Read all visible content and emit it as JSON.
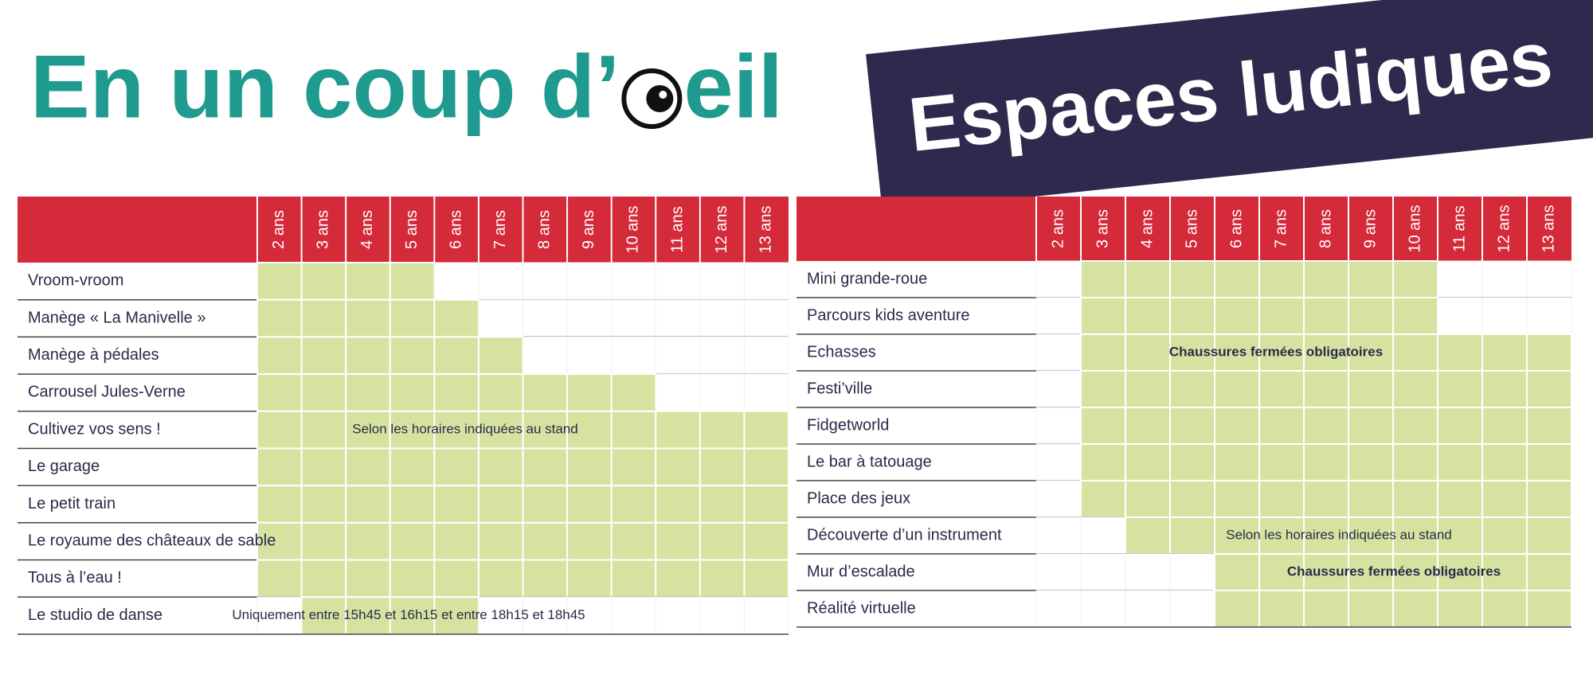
{
  "header": {
    "title_start": "En un coup d’",
    "title_end": "eil",
    "banner": "Espaces ludiques"
  },
  "tables": [
    {
      "columns": [
        "2 ans",
        "3 ans",
        "4 ans",
        "5 ans",
        "6 ans",
        "7 ans",
        "8 ans",
        "9 ans",
        "10 ans",
        "11 ans",
        "12 ans",
        "13 ans"
      ],
      "rows": [
        {
          "label": "Vroom-vroom",
          "cells": [
            true,
            true,
            true,
            true,
            false,
            false,
            false,
            false,
            false,
            false,
            false,
            false
          ]
        },
        {
          "label": "Manège « La Manivelle »",
          "cells": [
            true,
            true,
            true,
            true,
            true,
            false,
            false,
            false,
            false,
            false,
            false,
            false
          ]
        },
        {
          "label": "Manège à pédales",
          "cells": [
            true,
            true,
            true,
            true,
            true,
            true,
            false,
            false,
            false,
            false,
            false,
            false
          ]
        },
        {
          "label": "Carrousel Jules-Verne",
          "cells": [
            true,
            true,
            true,
            true,
            true,
            true,
            true,
            true,
            true,
            false,
            false,
            false
          ]
        },
        {
          "label": "Cultivez vos sens !",
          "cells": [
            true,
            true,
            true,
            true,
            true,
            true,
            true,
            true,
            true,
            true,
            true,
            true
          ],
          "note": "Selon les horaires indiquées au stand"
        },
        {
          "label": "Le garage",
          "cells": [
            true,
            true,
            true,
            true,
            true,
            true,
            true,
            true,
            true,
            true,
            true,
            true
          ]
        },
        {
          "label": "Le petit train",
          "cells": [
            true,
            true,
            true,
            true,
            true,
            true,
            true,
            true,
            true,
            true,
            true,
            true
          ]
        },
        {
          "label": "Le royaume des châteaux de sable",
          "cells": [
            true,
            true,
            true,
            true,
            true,
            true,
            true,
            true,
            true,
            true,
            true,
            true
          ]
        },
        {
          "label": "Tous à l’eau !",
          "cells": [
            true,
            true,
            true,
            true,
            true,
            true,
            true,
            true,
            true,
            true,
            true,
            true
          ]
        },
        {
          "label": "Le studio de danse",
          "cells": [
            false,
            true,
            true,
            true,
            true,
            false,
            false,
            false,
            false,
            false,
            false,
            false
          ],
          "note": "Uniquement entre 15h45 et 16h15 et entre 18h15 et 18h45"
        }
      ]
    },
    {
      "columns": [
        "2 ans",
        "3 ans",
        "4 ans",
        "5 ans",
        "6 ans",
        "7 ans",
        "8 ans",
        "9 ans",
        "10 ans",
        "11 ans",
        "12 ans",
        "13 ans"
      ],
      "rows": [
        {
          "label": "Mini grande-roue",
          "cells": [
            false,
            true,
            true,
            true,
            true,
            true,
            true,
            true,
            true,
            false,
            false,
            false
          ]
        },
        {
          "label": "Parcours kids aventure",
          "cells": [
            false,
            true,
            true,
            true,
            true,
            true,
            true,
            true,
            true,
            false,
            false,
            false
          ]
        },
        {
          "label": "Echasses",
          "cells": [
            false,
            true,
            true,
            true,
            true,
            true,
            true,
            true,
            true,
            true,
            true,
            true
          ],
          "note": "Chaussures fermées obligatoires",
          "note_bold": true
        },
        {
          "label": "Festi’ville",
          "cells": [
            false,
            true,
            true,
            true,
            true,
            true,
            true,
            true,
            true,
            true,
            true,
            true
          ]
        },
        {
          "label": "Fidgetworld",
          "cells": [
            false,
            true,
            true,
            true,
            true,
            true,
            true,
            true,
            true,
            true,
            true,
            true
          ]
        },
        {
          "label": "Le bar à tatouage",
          "cells": [
            false,
            true,
            true,
            true,
            true,
            true,
            true,
            true,
            true,
            true,
            true,
            true
          ]
        },
        {
          "label": "Place des jeux",
          "cells": [
            false,
            true,
            true,
            true,
            true,
            true,
            true,
            true,
            true,
            true,
            true,
            true
          ]
        },
        {
          "label": "Découverte d’un instrument",
          "cells": [
            false,
            false,
            true,
            true,
            true,
            true,
            true,
            true,
            true,
            true,
            true,
            true
          ],
          "note": "Selon les horaires indiquées au stand"
        },
        {
          "label": "Mur d’escalade",
          "cells": [
            false,
            false,
            false,
            false,
            true,
            true,
            true,
            true,
            true,
            true,
            true,
            true
          ],
          "note": "Chaussures fermées obligatoires",
          "note_bold": true
        },
        {
          "label": "Réalité virtuelle",
          "cells": [
            false,
            false,
            false,
            false,
            true,
            true,
            true,
            true,
            true,
            true,
            true,
            true
          ]
        }
      ]
    }
  ]
}
